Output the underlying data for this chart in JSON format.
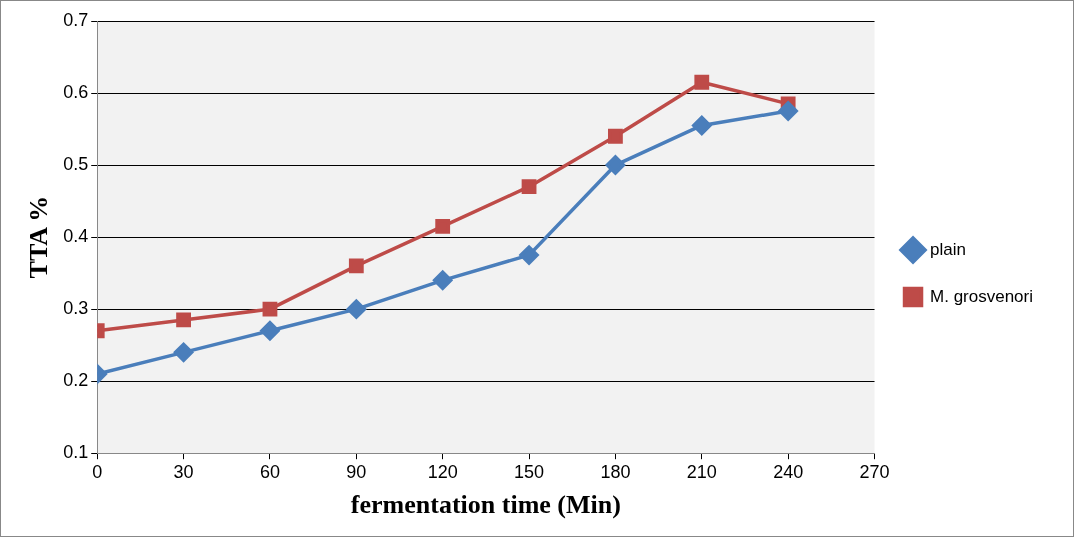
{
  "chart_data": {
    "type": "line",
    "xlabel": "fermentation time (Min)",
    "ylabel": "TTA %",
    "x": [
      0,
      30,
      60,
      90,
      120,
      150,
      180,
      210,
      240
    ],
    "series": [
      {
        "name": "plain",
        "color": "#4a7ebb",
        "marker": "diamond",
        "values": [
          0.21,
          0.24,
          0.27,
          0.3,
          0.34,
          0.375,
          0.5,
          0.555,
          0.575
        ]
      },
      {
        "name": "M. grosvenori",
        "color": "#be4b48",
        "marker": "square",
        "values": [
          0.27,
          0.285,
          0.3,
          0.36,
          0.415,
          0.47,
          0.54,
          0.615,
          0.585
        ]
      }
    ],
    "xlim": [
      0,
      270
    ],
    "xticks": [
      0,
      30,
      60,
      90,
      120,
      150,
      180,
      210,
      240,
      270
    ],
    "ylim": [
      0.1,
      0.7
    ],
    "yticks": [
      0.1,
      0.2,
      0.3,
      0.4,
      0.5,
      0.6,
      0.7
    ],
    "grid": "y",
    "legend": "right",
    "line_style": "solid"
  }
}
